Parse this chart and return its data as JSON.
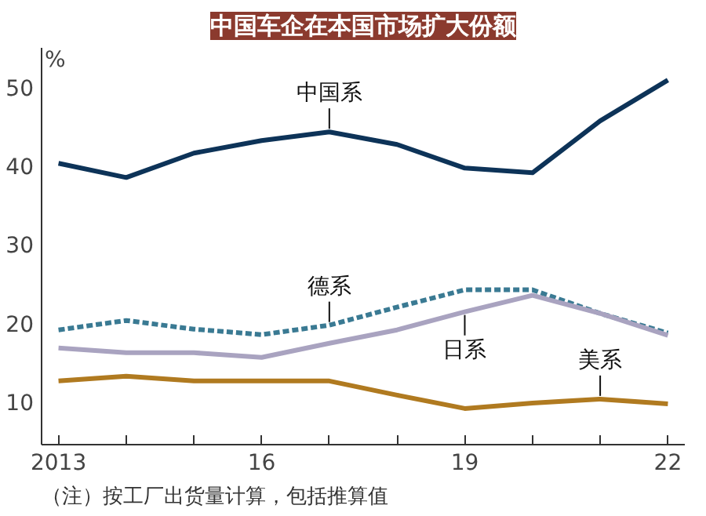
{
  "chart_data": {
    "type": "line",
    "title": "中国车企在本国市场扩大份额",
    "ylabel": "%",
    "x": [
      2013,
      2014,
      2015,
      2016,
      2017,
      2018,
      2019,
      2020,
      2021,
      2022
    ],
    "series": [
      {
        "name": "中国系",
        "color": "#0d3358",
        "values": [
          40.3,
          38.5,
          41.6,
          43.2,
          44.3,
          42.7,
          39.7,
          39.1,
          45.7,
          50.9
        ]
      },
      {
        "name": "德系",
        "color": "#3a7a93",
        "line_style": "dashed",
        "values": [
          19.1,
          20.3,
          19.2,
          18.5,
          19.7,
          22.0,
          24.2,
          24.2,
          21.2,
          18.7
        ]
      },
      {
        "name": "日系",
        "color": "#a9a3c0",
        "values": [
          16.8,
          16.2,
          16.2,
          15.6,
          17.4,
          19.1,
          21.4,
          23.5,
          21.2,
          18.4
        ]
      },
      {
        "name": "美系",
        "color": "#b07a20",
        "values": [
          12.6,
          13.2,
          12.6,
          12.6,
          12.6,
          10.8,
          9.1,
          9.8,
          10.3,
          9.7
        ]
      }
    ],
    "xlim": [
      2012.75,
      2022.25
    ],
    "ylim": [
      4.5,
      55
    ],
    "xticks": [
      {
        "value": 2013,
        "label": "2013"
      },
      {
        "value": 2014,
        "label": null
      },
      {
        "value": 2015,
        "label": null
      },
      {
        "value": 2016,
        "label": "16"
      },
      {
        "value": 2017,
        "label": null
      },
      {
        "value": 2018,
        "label": null
      },
      {
        "value": 2019,
        "label": "19"
      },
      {
        "value": 2020,
        "label": null
      },
      {
        "value": 2021,
        "label": null
      },
      {
        "value": 2022,
        "label": "22"
      }
    ],
    "yticks": [
      10,
      20,
      30,
      40,
      50
    ],
    "grid": false,
    "line_style": "solid",
    "marker": "none",
    "annotations": [
      "（注）按工厂出货量计算，包括推算值"
    ]
  }
}
